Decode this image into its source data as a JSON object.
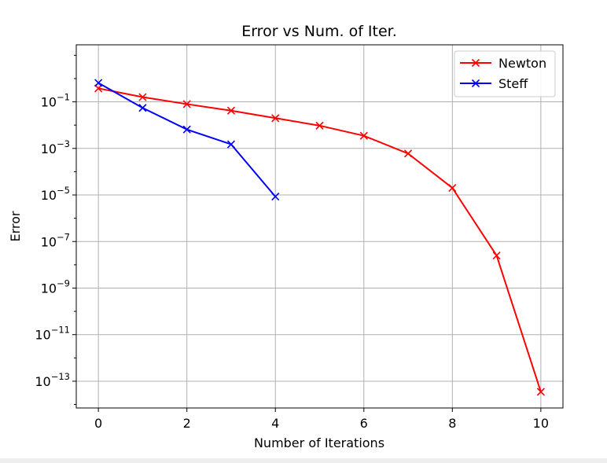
{
  "chart_data": {
    "type": "line",
    "title": "Error vs Num. of Iter.",
    "xlabel": "Number of Iterations",
    "ylabel": "Error",
    "x_scale": "linear",
    "y_scale": "log",
    "xlim": [
      -0.5,
      10.5
    ],
    "ylim_log10": [
      -14.15,
      1.45
    ],
    "x_ticks": [
      0,
      2,
      4,
      6,
      8,
      10
    ],
    "y_ticks": [
      {
        "exp": -13,
        "label": "10",
        "sup": "−13"
      },
      {
        "exp": -11,
        "label": "10",
        "sup": "−11"
      },
      {
        "exp": -9,
        "label": "10",
        "sup": "−9"
      },
      {
        "exp": -7,
        "label": "10",
        "sup": "−7"
      },
      {
        "exp": -5,
        "label": "10",
        "sup": "−5"
      },
      {
        "exp": -3,
        "label": "10",
        "sup": "−3"
      },
      {
        "exp": -1,
        "label": "10",
        "sup": "−1"
      }
    ],
    "grid": true,
    "legend_position": "top-right",
    "series": [
      {
        "name": "Newton",
        "color": "#ff0000",
        "marker": "x",
        "x": [
          0,
          1,
          2,
          3,
          4,
          5,
          6,
          7,
          8,
          9,
          10
        ],
        "y": [
          0.38,
          0.16,
          0.08,
          0.042,
          0.02,
          0.0095,
          0.0035,
          0.0006,
          2e-05,
          2.5e-08,
          3.5e-14
        ]
      },
      {
        "name": "Steff",
        "color": "#0000ff",
        "marker": "x",
        "x": [
          0,
          1,
          2,
          3,
          4
        ],
        "y": [
          0.65,
          0.055,
          0.0065,
          0.0015,
          8.5e-06
        ]
      }
    ]
  }
}
